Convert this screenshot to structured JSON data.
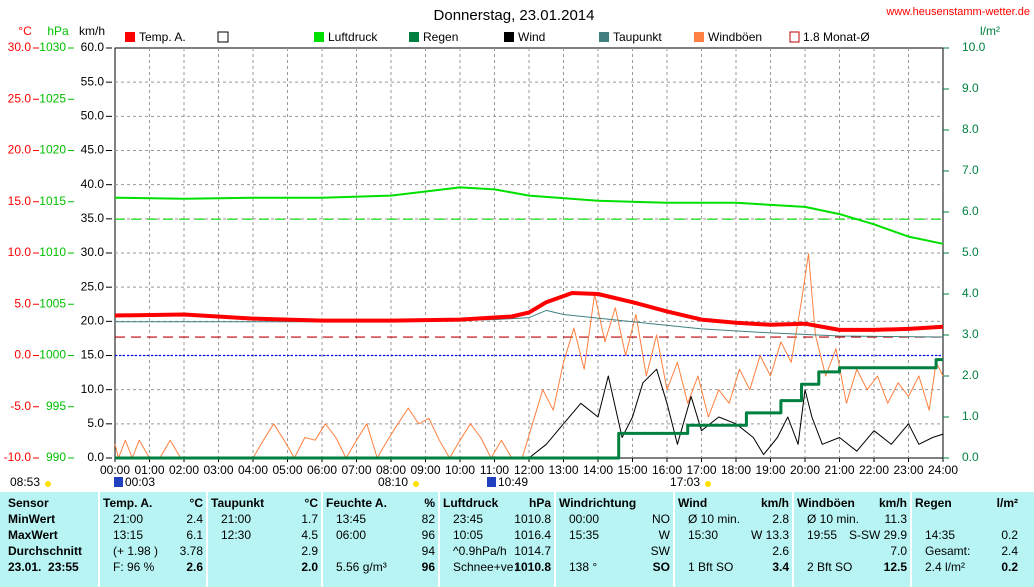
{
  "chart_data": {
    "type": "line",
    "title": "Donnerstag, 23.01.2014",
    "source": "www.heusenstamm-wetter.de",
    "xlim": [
      0,
      24
    ],
    "xticks": [
      {
        "value": 0,
        "label": "00:00"
      },
      {
        "value": 1,
        "label": "01:00"
      },
      {
        "value": 2,
        "label": "02:00"
      },
      {
        "value": 3,
        "label": "03:00"
      },
      {
        "value": 4,
        "label": "04:00"
      },
      {
        "value": 5,
        "label": "05:00"
      },
      {
        "value": 6,
        "label": "06:00"
      },
      {
        "value": 7,
        "label": "07:00"
      },
      {
        "value": 8,
        "label": "08:00"
      },
      {
        "value": 9,
        "label": "09:00"
      },
      {
        "value": 10,
        "label": "10:00"
      },
      {
        "value": 11,
        "label": "11:00"
      },
      {
        "value": 12,
        "label": "12:00"
      },
      {
        "value": 13,
        "label": "13:00"
      },
      {
        "value": 14,
        "label": "14:00"
      },
      {
        "value": 15,
        "label": "15:00"
      },
      {
        "value": 16,
        "label": "16:00"
      },
      {
        "value": 17,
        "label": "17:00"
      },
      {
        "value": 18,
        "label": "18:00"
      },
      {
        "value": 19,
        "label": "19:00"
      },
      {
        "value": 20,
        "label": "20:00"
      },
      {
        "value": 21,
        "label": "21:00"
      },
      {
        "value": 22,
        "label": "22:00"
      },
      {
        "value": 23,
        "label": "23:00"
      },
      {
        "value": 24,
        "label": "24:00"
      }
    ],
    "grid": true,
    "axes": [
      {
        "label": "°C",
        "color": "#ff0000",
        "lim": [
          -10,
          30
        ],
        "ticks": [
          {
            "value": -10,
            "label": "-10.0"
          },
          {
            "value": -5,
            "label": "-5.0"
          },
          {
            "value": 0,
            "label": "0.0"
          },
          {
            "value": 5,
            "label": "5.0"
          },
          {
            "value": 10,
            "label": "10.0"
          },
          {
            "value": 15,
            "label": "15.0"
          },
          {
            "value": 20,
            "label": "20.0"
          },
          {
            "value": 25,
            "label": "25.0"
          },
          {
            "value": 30,
            "label": "30.0"
          }
        ]
      },
      {
        "label": "hPa",
        "color": "#00c000",
        "lim": [
          990,
          1030
        ],
        "ticks": [
          990,
          995,
          1000,
          1005,
          1010,
          1015,
          1020,
          1025,
          1030
        ]
      },
      {
        "label": "km/h",
        "color": "#000000",
        "lim": [
          0,
          60
        ],
        "ticks": [
          {
            "value": 0,
            "label": "0.0"
          },
          {
            "value": 5,
            "label": "5.0"
          },
          {
            "value": 10,
            "label": "10.0"
          },
          {
            "value": 15,
            "label": "15.0"
          },
          {
            "value": 20,
            "label": "20.0"
          },
          {
            "value": 25,
            "label": "25.0"
          },
          {
            "value": 30,
            "label": "30.0"
          },
          {
            "value": 35,
            "label": "35.0"
          },
          {
            "value": 40,
            "label": "40.0"
          },
          {
            "value": 45,
            "label": "45.0"
          },
          {
            "value": 50,
            "label": "50.0"
          },
          {
            "value": 55,
            "label": "55.0"
          },
          {
            "value": 60,
            "label": "60.0"
          }
        ]
      },
      {
        "label": "l/m²",
        "color": "#008040",
        "lim": [
          0,
          10
        ],
        "ticks": [
          {
            "value": 0,
            "label": "0.0"
          },
          {
            "value": 1,
            "label": "1.0"
          },
          {
            "value": 2,
            "label": "2.0"
          },
          {
            "value": 3,
            "label": "3.0"
          },
          {
            "value": 4,
            "label": "4.0"
          },
          {
            "value": 5,
            "label": "5.0"
          },
          {
            "value": 6,
            "label": "6.0"
          },
          {
            "value": 7,
            "label": "7.0"
          },
          {
            "value": 8,
            "label": "8.0"
          },
          {
            "value": 9,
            "label": "9.0"
          },
          {
            "value": 10,
            "label": "10.0"
          }
        ]
      }
    ],
    "reference_lines": [
      {
        "axis": 1,
        "value": 1013.3,
        "color": "#00e000",
        "style": "dashed"
      },
      {
        "axis": 0,
        "value": 0,
        "color": "#0000ff",
        "style": "dotted"
      },
      {
        "axis": 0,
        "value": 1.8,
        "color": "#c00000",
        "style": "dashed",
        "name": "1.8 Monat-Ø"
      }
    ],
    "series": [
      {
        "name": "Windböen",
        "color": "#ff8040",
        "width": 1,
        "axis": 2,
        "x": [
          0,
          0.1,
          0.3,
          0.5,
          0.7,
          1,
          1.3,
          1.6,
          1.9,
          2.2,
          2.5,
          3,
          3.5,
          4,
          4.3,
          4.6,
          4.9,
          5.2,
          5.5,
          5.8,
          6.1,
          6.4,
          6.7,
          7,
          7.3,
          7.6,
          7.9,
          8.2,
          8.5,
          8.8,
          9.1,
          9.4,
          9.7,
          10,
          10.3,
          10.6,
          10.9,
          11.2,
          11.5,
          11.8,
          12.1,
          12.4,
          12.7,
          13,
          13.3,
          13.6,
          13.9,
          14.2,
          14.5,
          14.8,
          15.1,
          15.4,
          15.7,
          16,
          16.3,
          16.6,
          16.9,
          17.2,
          17.5,
          17.8,
          18.1,
          18.4,
          18.7,
          19,
          19.3,
          19.6,
          19.9,
          20.1,
          20.3,
          20.6,
          20.9,
          21.2,
          21.5,
          21.8,
          22.1,
          22.4,
          22.7,
          23,
          23.3,
          23.6,
          23.8,
          24
        ],
        "values": [
          2,
          0,
          2.6,
          0,
          2.6,
          0,
          0,
          2.6,
          0,
          0,
          0,
          0,
          0,
          0,
          2.6,
          5,
          2.6,
          0,
          3,
          2.6,
          5,
          3,
          0,
          2.6,
          5,
          0,
          2.6,
          5,
          7.3,
          5,
          5.8,
          2.6,
          0,
          2.6,
          5,
          3,
          0,
          2.6,
          0,
          0,
          5,
          10,
          7,
          14,
          19,
          13,
          24,
          17,
          22,
          15,
          21,
          12,
          18,
          10,
          14,
          8,
          12,
          6,
          10,
          8,
          13,
          10,
          15,
          12,
          17,
          14,
          23,
          29.9,
          18,
          12,
          16,
          8,
          13,
          10,
          12,
          8,
          11,
          9,
          12,
          7,
          14,
          12
        ]
      },
      {
        "name": "Wind",
        "color": "#000000",
        "width": 1,
        "axis": 2,
        "x": [
          0,
          12,
          12.5,
          13,
          13.5,
          14,
          14.3,
          14.7,
          15,
          15.3,
          15.7,
          16,
          16.3,
          16.7,
          17,
          17.5,
          18,
          18.5,
          18.8,
          19.2,
          19.5,
          19.8,
          20,
          20.2,
          20.5,
          21,
          21.5,
          22,
          22.5,
          23,
          23.3,
          23.7,
          24
        ],
        "values": [
          0,
          0,
          2,
          5,
          8,
          6,
          12,
          3,
          6,
          11,
          13,
          8,
          2,
          9,
          4,
          6,
          5,
          3,
          0.5,
          3,
          6,
          2,
          10,
          6,
          2,
          3,
          1,
          4,
          2,
          5,
          2,
          3,
          3.5
        ]
      },
      {
        "name": "Regen",
        "color": "#008040",
        "width": 3,
        "axis": 3,
        "x": [
          0,
          14.6,
          14.6,
          16.6,
          16.6,
          18.3,
          18.3,
          19.3,
          19.3,
          19.9,
          19.9,
          20.4,
          20.4,
          21,
          21,
          23.8,
          23.8,
          24
        ],
        "values": [
          0,
          0,
          0.6,
          0.6,
          0.8,
          0.8,
          1.1,
          1.1,
          1.4,
          1.4,
          1.8,
          1.8,
          2.1,
          2.1,
          2.2,
          2.2,
          2.4,
          2.4
        ]
      },
      {
        "name": "Taupunkt",
        "color": "#408080",
        "width": 1,
        "axis": 0,
        "x": [
          0,
          4,
          8,
          11,
          12,
          12.5,
          13,
          15,
          17,
          19,
          21,
          24
        ],
        "values": [
          3.3,
          3.3,
          3.3,
          3.5,
          3.7,
          4.4,
          4.0,
          3.3,
          2.6,
          2.2,
          1.9,
          1.8
        ]
      },
      {
        "name": "Luftdruck",
        "color": "#00e000",
        "width": 2,
        "axis": 1,
        "x": [
          0,
          2,
          4,
          6,
          8,
          10,
          11,
          12,
          14,
          16,
          18,
          20,
          21,
          22,
          23,
          24
        ],
        "values": [
          1015.4,
          1015.3,
          1015.4,
          1015.4,
          1015.6,
          1016.4,
          1016.2,
          1015.6,
          1015.1,
          1014.9,
          1014.9,
          1014.5,
          1013.8,
          1012.8,
          1011.6,
          1010.9
        ]
      },
      {
        "name": "Temp. A.",
        "color": "#ff0000",
        "width": 4,
        "axis": 0,
        "x": [
          0,
          2,
          4,
          6,
          8,
          10,
          11.5,
          12,
          12.5,
          13.25,
          14,
          15,
          16,
          17,
          18,
          19,
          20,
          21,
          22,
          23,
          24
        ],
        "values": [
          3.9,
          4.0,
          3.6,
          3.4,
          3.4,
          3.5,
          3.8,
          4.2,
          5.2,
          6.1,
          6.0,
          5.2,
          4.3,
          3.5,
          3.2,
          3.0,
          3.1,
          2.5,
          2.5,
          2.6,
          2.8
        ]
      }
    ],
    "markers": [
      "08:53",
      "00:03",
      "08:10",
      "10:49",
      "17:03"
    ]
  },
  "table": {
    "columns": [
      {
        "label": "Sensor"
      },
      {
        "label": "Temp. A.",
        "unit": "°C"
      },
      {
        "label": "Taupunkt",
        "unit": "°C"
      },
      {
        "label": "Feuchte A.",
        "unit": "%"
      },
      {
        "label": "Luftdruck",
        "unit": "hPa"
      },
      {
        "label": "Windrichtung"
      },
      {
        "label": "Wind",
        "unit": "km/h"
      },
      {
        "label": "Windböen",
        "unit": "km/h"
      },
      {
        "label": "Regen",
        "unit": "l/m²"
      }
    ],
    "rows": [
      {
        "label": "MinWert",
        "cells": [
          [
            "21:00",
            "2.4"
          ],
          [
            "21:00",
            "1.7"
          ],
          [
            "13:45",
            "82"
          ],
          [
            "23:45",
            "1010.8"
          ],
          [
            "00:00",
            "NO"
          ],
          [
            "Ø 10 min.",
            "2.8"
          ],
          [
            "Ø 10 min.",
            "11.3"
          ],
          []
        ]
      },
      {
        "label": "MaxWert",
        "cells": [
          [
            "13:15",
            "6.1"
          ],
          [
            "12:30",
            "4.5"
          ],
          [
            "06:00",
            "96"
          ],
          [
            "10:05",
            "1016.4"
          ],
          [
            "15:35",
            "W"
          ],
          [
            "15:30",
            "W 13.3"
          ],
          [
            "19:55",
            "S-SW 29.9"
          ],
          [
            "14:35",
            "0.2"
          ]
        ]
      },
      {
        "label": "Durchschnitt",
        "cells": [
          [
            "(+ 1.98 )",
            "3.78"
          ],
          [
            "2.9"
          ],
          [
            "94"
          ],
          [
            "^0.9hPa/h",
            "1014.7"
          ],
          [
            "SW"
          ],
          [
            "2.6"
          ],
          [
            "7.0"
          ],
          [
            "Gesamt:",
            "2.4"
          ]
        ]
      },
      {
        "label": "23.01.  23:55",
        "cells": [
          [
            "F: 96 %",
            "2.6"
          ],
          [
            "2.0"
          ],
          [
            "5.56 g/m³",
            "96"
          ],
          [
            "Schnee+ve↓",
            "1010.8"
          ],
          [
            "138 °",
            "SO"
          ],
          [
            "1 Bft SO",
            "3.4"
          ],
          [
            "2 Bft SO",
            "12.5"
          ],
          [
            "2.4 l/m²",
            "0.2"
          ]
        ]
      }
    ]
  }
}
